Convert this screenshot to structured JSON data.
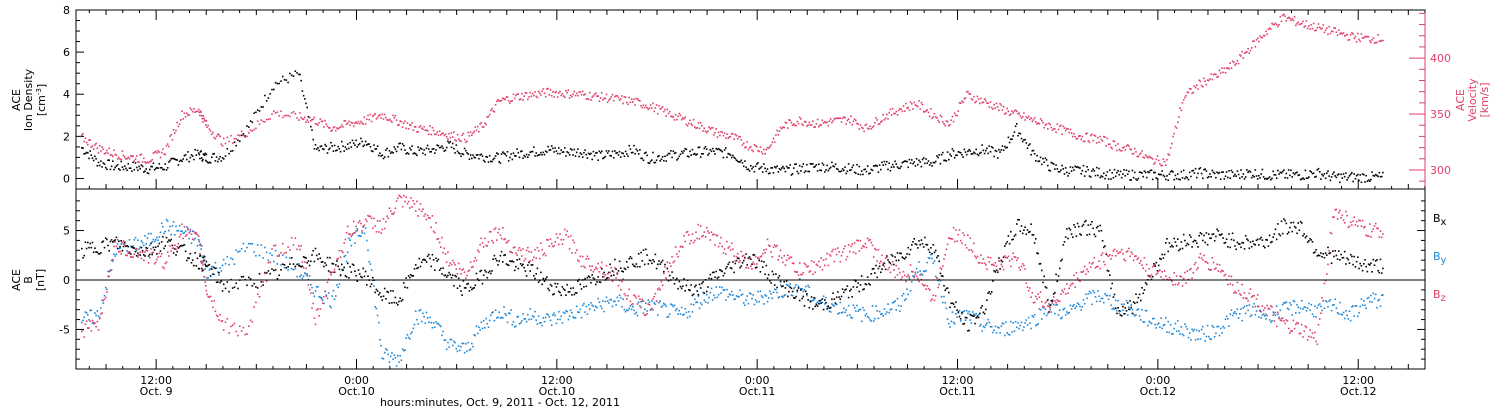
{
  "colors": {
    "black": "#000000",
    "red": "#e0406a",
    "blue": "#1e88d8"
  },
  "footer": {
    "xlabel": "hours:minutes, Oct.  9, 2011 - Oct. 12, 2011"
  },
  "chart_data": [
    {
      "type": "scatter",
      "panel": "top",
      "ylabel_left_line1": "ACE",
      "ylabel_left_line2": "Ion Density",
      "ylabel_left_unit": "[cm",
      "ylabel_left_unit_sup": "-3",
      "ylabel_left_unit_end": "]",
      "ylabel_right_line1": "ACE",
      "ylabel_right_line2": "Velocity",
      "ylabel_right_unit": "[km/s]",
      "ylim_left": [
        -0.5,
        8
      ],
      "yticks_left": [
        0,
        2,
        4,
        6,
        8
      ],
      "ylim_right": [
        283,
        443
      ],
      "yticks_right_labeled": [
        300,
        350,
        400
      ],
      "x_hours_range": [
        7.5,
        85
      ],
      "series": [
        {
          "color": "red",
          "axis": "right",
          "x": [
            7.5,
            8.5,
            9.5,
            10.5,
            11.5,
            12.5,
            13.5,
            14.5,
            15,
            16,
            17.5,
            19,
            20.5,
            21.5,
            22.5,
            23.5,
            24.5,
            25.5,
            26.5,
            27.5,
            28.5,
            29.5,
            30.5,
            31.5,
            32.5,
            33.5,
            34.5,
            35.5,
            36.5,
            37.5,
            38.5,
            39.5,
            40.5,
            41.5,
            42.5,
            43.5,
            44.5,
            45.5,
            46.5,
            47.5,
            48.5,
            49.5,
            50.5,
            51.5,
            52.5,
            53.5,
            54.5,
            55.5,
            56.5,
            57.5,
            58.5,
            59.5,
            60.5,
            61.5,
            62.5,
            63.5,
            64.5,
            65.5,
            66.5,
            67.5,
            68.5,
            69.5,
            70.5,
            71.5,
            72.5,
            73.5,
            74.5,
            75.5,
            76.5,
            77.5,
            78.5,
            79.5,
            80.5,
            81.5,
            82.5,
            83.5,
            84.5
          ],
          "y": [
            330,
            320,
            315,
            312,
            310,
            318,
            350,
            355,
            340,
            325,
            335,
            352,
            348,
            345,
            338,
            342,
            345,
            350,
            344,
            338,
            336,
            332,
            329,
            340,
            362,
            366,
            368,
            370,
            369,
            368,
            366,
            364,
            362,
            358,
            352,
            346,
            340,
            334,
            330,
            322,
            318,
            340,
            345,
            342,
            344,
            346,
            338,
            348,
            355,
            360,
            350,
            342,
            368,
            362,
            356,
            350,
            345,
            340,
            335,
            330,
            328,
            322,
            318,
            310,
            308,
            365,
            378,
            385,
            395,
            410,
            425,
            437,
            432,
            428,
            424,
            420,
            418
          ]
        },
        {
          "color": "black",
          "axis": "left",
          "x": [
            7.5,
            8.5,
            9.5,
            10.5,
            11.5,
            12.5,
            13.5,
            14.5,
            15,
            16,
            17.5,
            19,
            20.5,
            21.5,
            22.5,
            23.5,
            24.5,
            25.5,
            26.5,
            27.5,
            28.5,
            29.5,
            30.5,
            31.5,
            32.5,
            33.5,
            34.5,
            35.5,
            36.5,
            37.5,
            38.5,
            39.5,
            40.5,
            41.5,
            42.5,
            43.5,
            44.5,
            45.5,
            46.5,
            47.5,
            48.5,
            49.5,
            50.5,
            51.5,
            52.5,
            53.5,
            54.5,
            55.5,
            56.5,
            57.5,
            58.5,
            59.5,
            60.5,
            61.5,
            62.5,
            63.5,
            64.5,
            65.5,
            66.5,
            67.5,
            68.5,
            69.5,
            70.5,
            71.5,
            72.5,
            73.5,
            74.5,
            75.5,
            76.5,
            77.5,
            78.5,
            79.5,
            80.5,
            81.5,
            82.5,
            83.5,
            84.5
          ],
          "y": [
            1.5,
            0.8,
            0.6,
            0.6,
            0.5,
            0.6,
            1.0,
            1.2,
            1.0,
            1.1,
            2.5,
            4.5,
            5.0,
            1.4,
            1.5,
            1.6,
            1.8,
            1.2,
            1.5,
            1.3,
            1.4,
            1.6,
            1.2,
            1.1,
            1.0,
            1.2,
            1.3,
            1.4,
            1.3,
            1.3,
            1.1,
            1.2,
            1.4,
            1.0,
            1.1,
            1.2,
            1.3,
            1.3,
            1.2,
            0.6,
            0.5,
            0.4,
            0.5,
            0.6,
            0.6,
            0.5,
            0.4,
            0.6,
            0.7,
            0.8,
            0.8,
            1.2,
            1.3,
            1.4,
            1.2,
            2.4,
            1.2,
            0.6,
            0.4,
            0.4,
            0.3,
            0.2,
            0.2,
            0.2,
            0.2,
            0.2,
            0.3,
            0.2,
            0.2,
            0.3,
            0.2,
            0.2,
            0.2,
            0.3,
            0.1,
            0.1,
            0.1
          ]
        }
      ]
    },
    {
      "type": "scatter",
      "panel": "bottom",
      "ylabel_line1": "ACE",
      "ylabel_line2": "B",
      "ylabel_unit": "[nT]",
      "ylim": [
        -9,
        9.2
      ],
      "yticks": [
        -5,
        0,
        5
      ],
      "x_hours_range": [
        7.5,
        85
      ],
      "legend": [
        {
          "label": "B",
          "sub": "x",
          "color": "black"
        },
        {
          "label": "B",
          "sub": "y",
          "color": "blue"
        },
        {
          "label": "B",
          "sub": "z",
          "color": "red"
        }
      ],
      "series": [
        {
          "name": "Bx",
          "color": "black",
          "x": [
            7.5,
            8.5,
            9.5,
            10.5,
            11.5,
            12.5,
            13.5,
            14.5,
            15,
            16,
            17.5,
            19,
            20.5,
            21.5,
            22.5,
            23.5,
            24.5,
            25.5,
            26.5,
            27.5,
            28.5,
            29.5,
            30.5,
            31.5,
            32.5,
            33.5,
            34.5,
            35.5,
            36.5,
            37.5,
            38.5,
            39.5,
            40.5,
            41.5,
            42.5,
            43.5,
            44.5,
            45.5,
            46.5,
            47.5,
            48.5,
            49.5,
            50.5,
            51.5,
            52.5,
            53.5,
            54.5,
            55.5,
            56.5,
            57.5,
            58.5,
            59.5,
            60.5,
            61.5,
            62.5,
            63.5,
            64.5,
            65.5,
            66.5,
            67.5,
            68.5,
            69.5,
            70.5,
            71.5,
            72.5,
            73.5,
            74.5,
            75.5,
            76.5,
            77.5,
            78.5,
            79.5,
            80.5,
            81.5,
            82.5,
            83.5,
            84.5
          ],
          "y": [
            3.0,
            3.5,
            3.8,
            3.2,
            3.0,
            4.0,
            3.0,
            2.0,
            1.5,
            -0.5,
            -0.2,
            0.5,
            2.0,
            2.5,
            1.5,
            1.0,
            0.5,
            -1.5,
            -2.0,
            1.5,
            2.0,
            0.5,
            -1.0,
            0.5,
            2.5,
            1.5,
            1.0,
            -0.5,
            -1.0,
            -0.5,
            0.5,
            1.5,
            2.0,
            2.5,
            1.0,
            -0.5,
            -1.0,
            0.5,
            1.5,
            2.5,
            1.0,
            -0.5,
            -1.5,
            -2.5,
            -2.0,
            -1.0,
            0.0,
            1.5,
            2.5,
            4.0,
            3.5,
            -2.0,
            -4.5,
            -3.0,
            2.0,
            5.5,
            5.0,
            -3.0,
            5.0,
            5.5,
            5.0,
            -3.0,
            -2.5,
            0.5,
            3.5,
            4.0,
            4.2,
            4.5,
            4.0,
            3.8,
            4.0,
            5.5,
            5.5,
            3.0,
            2.5,
            2.0,
            1.5
          ]
        },
        {
          "name": "By",
          "color": "blue",
          "x": [
            7.5,
            8.5,
            9.5,
            10.5,
            11.5,
            12.5,
            13.5,
            14.5,
            15,
            16,
            17.5,
            19,
            20.5,
            21.5,
            22.5,
            23.5,
            24.5,
            25.5,
            26.5,
            27.5,
            28.5,
            29.5,
            30.5,
            31.5,
            32.5,
            33.5,
            34.5,
            35.5,
            36.5,
            37.5,
            38.5,
            39.5,
            40.5,
            41.5,
            42.5,
            43.5,
            44.5,
            45.5,
            46.5,
            47.5,
            48.5,
            49.5,
            50.5,
            51.5,
            52.5,
            53.5,
            54.5,
            55.5,
            56.5,
            57.5,
            58.5,
            59.5,
            60.5,
            61.5,
            62.5,
            63.5,
            64.5,
            65.5,
            66.5,
            67.5,
            68.5,
            69.5,
            70.5,
            71.5,
            72.5,
            73.5,
            74.5,
            75.5,
            76.5,
            77.5,
            78.5,
            79.5,
            80.5,
            81.5,
            82.5,
            83.5,
            84.5
          ],
          "y": [
            -4.0,
            -3.5,
            3.0,
            3.5,
            4.0,
            5.5,
            5.0,
            4.0,
            1.0,
            1.5,
            3.5,
            2.5,
            1.0,
            -1.0,
            -2.0,
            3.5,
            5.5,
            -7.5,
            -8.0,
            -3.5,
            -4.0,
            -6.5,
            -7.0,
            -4.5,
            -3.0,
            -4.0,
            -3.5,
            -4.0,
            -3.5,
            -3.0,
            -2.5,
            -2.0,
            -3.0,
            -2.5,
            -3.0,
            -3.5,
            -2.0,
            -1.0,
            -1.5,
            -2.0,
            -1.5,
            -1.0,
            -0.5,
            -2.0,
            -2.5,
            -3.0,
            -3.5,
            -3.0,
            -2.5,
            1.0,
            2.0,
            -4.0,
            -3.5,
            -4.5,
            -5.0,
            -4.5,
            -4.0,
            -2.5,
            -3.5,
            -2.0,
            -1.5,
            -2.5,
            -3.0,
            -4.0,
            -4.5,
            -5.0,
            -5.5,
            -5.0,
            -3.5,
            -3.0,
            -3.5,
            -3.0,
            -2.5,
            -3.0,
            -2.5,
            -3.5,
            -2.0
          ]
        },
        {
          "name": "Bz",
          "color": "red",
          "x": [
            7.5,
            8.5,
            9.5,
            10.5,
            11.5,
            12.5,
            13.5,
            14.5,
            15,
            16,
            17.5,
            19,
            20.5,
            21.5,
            22.5,
            23.5,
            24.5,
            25.5,
            26.5,
            27.5,
            28.5,
            29.5,
            30.5,
            31.5,
            32.5,
            33.5,
            34.5,
            35.5,
            36.5,
            37.5,
            38.5,
            39.5,
            40.5,
            41.5,
            42.5,
            43.5,
            44.5,
            45.5,
            46.5,
            47.5,
            48.5,
            49.5,
            50.5,
            51.5,
            52.5,
            53.5,
            54.5,
            55.5,
            56.5,
            57.5,
            58.5,
            59.5,
            60.5,
            61.5,
            62.5,
            63.5,
            64.5,
            65.5,
            66.5,
            67.5,
            68.5,
            69.5,
            70.5,
            71.5,
            72.5,
            73.5,
            74.5,
            75.5,
            76.5,
            77.5,
            78.5,
            79.5,
            80.5,
            81.5,
            82.5,
            83.5,
            84.5
          ],
          "y": [
            -5.0,
            -4.5,
            3.5,
            3.0,
            2.5,
            2.0,
            5.0,
            4.0,
            -1.0,
            -4.5,
            -5.0,
            3.0,
            4.0,
            -4.0,
            1.0,
            5.0,
            6.0,
            5.5,
            8.0,
            7.5,
            6.0,
            2.0,
            0.5,
            4.0,
            5.0,
            3.0,
            2.5,
            3.5,
            4.5,
            2.0,
            1.5,
            0.5,
            -2.0,
            -3.0,
            1.0,
            4.0,
            5.0,
            4.0,
            3.0,
            1.5,
            3.5,
            2.5,
            1.0,
            1.5,
            2.5,
            3.0,
            4.0,
            2.0,
            0.5,
            1.0,
            -2.0,
            5.0,
            4.0,
            2.0,
            1.5,
            2.5,
            -1.5,
            -2.5,
            -1.0,
            1.0,
            2.0,
            3.0,
            2.5,
            1.0,
            0.5,
            0.0,
            2.0,
            1.5,
            -0.5,
            -1.5,
            -3.0,
            -4.5,
            -5.0,
            -6.0,
            7.0,
            6.0,
            5.0
          ]
        }
      ]
    },
    {
      "type": "axis",
      "ticks": [
        {
          "hour": 12,
          "top": "12:00",
          "bottom": "Oct. 9"
        },
        {
          "hour": 24,
          "top": "0:00",
          "bottom": "Oct.10"
        },
        {
          "hour": 36,
          "top": "12:00",
          "bottom": "Oct.10"
        },
        {
          "hour": 48,
          "top": "0:00",
          "bottom": "Oct.11"
        },
        {
          "hour": 60,
          "top": "12:00",
          "bottom": "Oct.11"
        },
        {
          "hour": 72,
          "top": "0:00",
          "bottom": "Oct.12"
        },
        {
          "hour": 84,
          "top": "12:00",
          "bottom": "Oct.12"
        }
      ]
    }
  ]
}
